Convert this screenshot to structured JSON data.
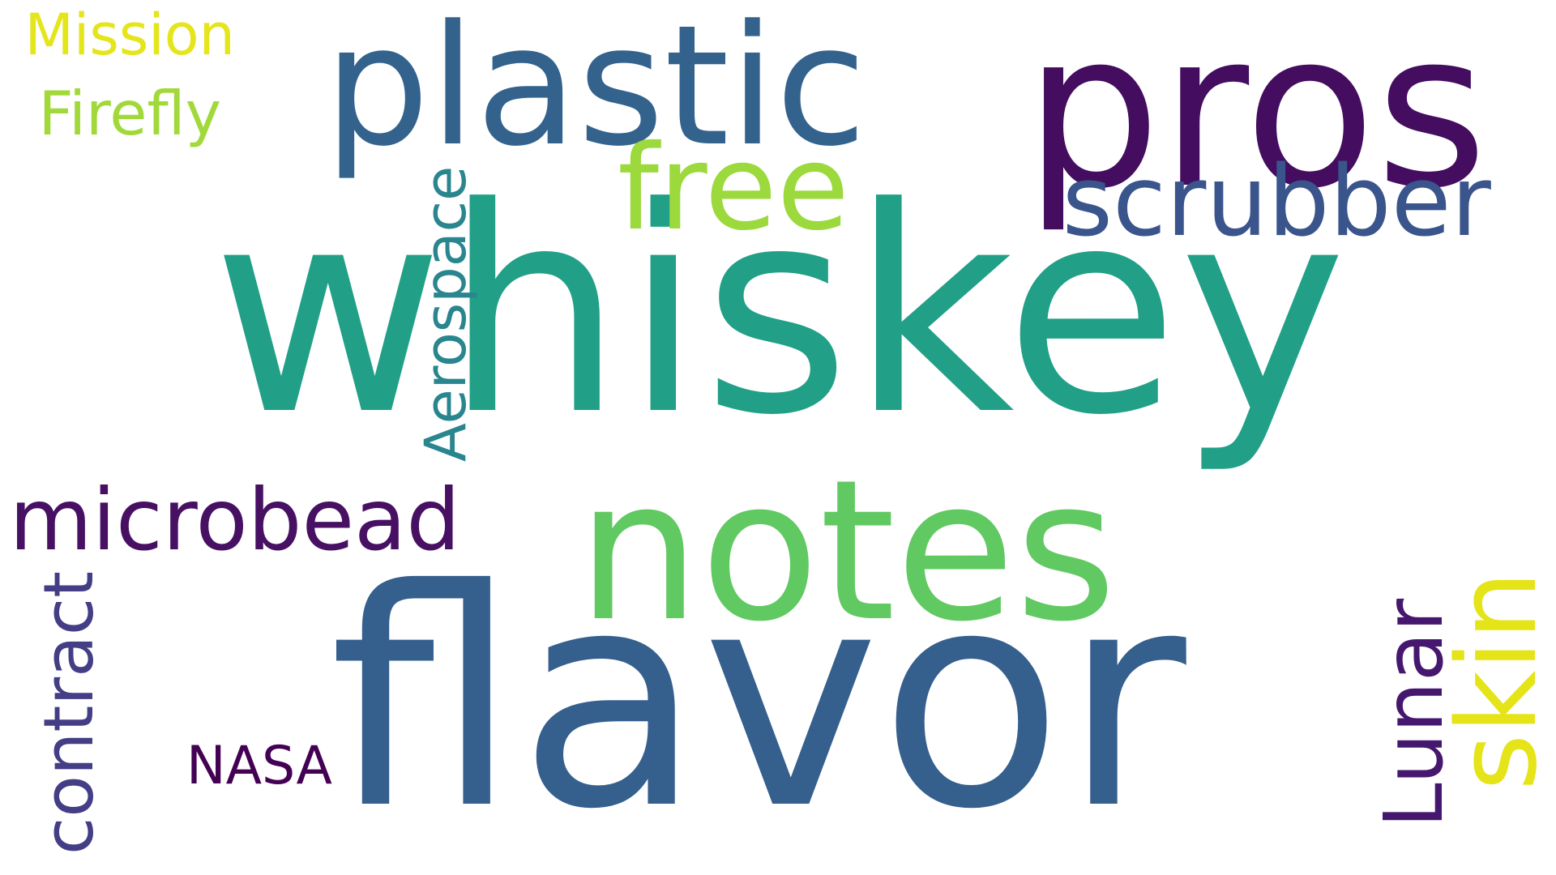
{
  "words": [
    {
      "key": "whiskey",
      "text": "whiskey",
      "color": "#21a087",
      "orientation": "horizontal"
    },
    {
      "key": "flavor",
      "text": "flavor",
      "color": "#355f8d",
      "orientation": "horizontal"
    },
    {
      "key": "notes",
      "text": "notes",
      "color": "#61c962",
      "orientation": "horizontal"
    },
    {
      "key": "pros",
      "text": "pros",
      "color": "#440d60",
      "orientation": "horizontal"
    },
    {
      "key": "plastic",
      "text": "plastic",
      "color": "#33638d",
      "orientation": "horizontal"
    },
    {
      "key": "free",
      "text": "free",
      "color": "#9bd93c",
      "orientation": "horizontal"
    },
    {
      "key": "scrubber",
      "text": "scrubber",
      "color": "#3a548c",
      "orientation": "horizontal"
    },
    {
      "key": "microbead",
      "text": "microbead",
      "color": "#471063",
      "orientation": "horizontal"
    },
    {
      "key": "skin",
      "text": "skin",
      "color": "#e5e419",
      "orientation": "vertical"
    },
    {
      "key": "lunar",
      "text": "Lunar",
      "color": "#46176e",
      "orientation": "vertical"
    },
    {
      "key": "aerospace",
      "text": "Aerospace",
      "color": "#29858e",
      "orientation": "vertical"
    },
    {
      "key": "contract",
      "text": "contract",
      "color": "#433e85",
      "orientation": "vertical"
    },
    {
      "key": "nasa",
      "text": "NASA",
      "color": "#440154",
      "orientation": "horizontal"
    },
    {
      "key": "mission",
      "text": "Mission",
      "color": "#e4e51a",
      "orientation": "horizontal"
    },
    {
      "key": "firefly",
      "text": "Firefly",
      "color": "#a2d93a",
      "orientation": "horizontal"
    }
  ]
}
